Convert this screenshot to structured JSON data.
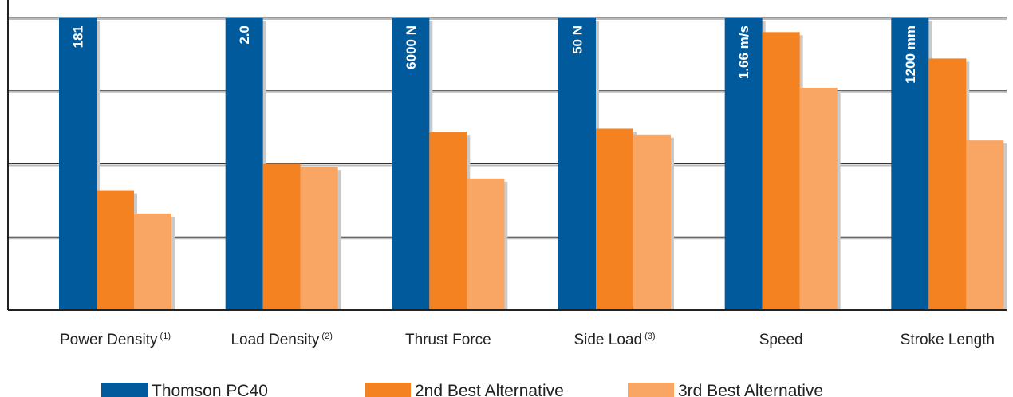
{
  "chart_data": {
    "type": "bar",
    "categories": [
      "Power Density",
      "Load Density",
      "Thrust Force",
      "Side Load",
      "Speed",
      "Stroke Length"
    ],
    "category_footnotes": [
      "(1)",
      "(2)",
      "",
      "(3)",
      "",
      ""
    ],
    "series": [
      {
        "name": "Thomson PC40",
        "color": "#005a9c",
        "values": [
          100,
          100,
          100,
          100,
          100,
          100
        ],
        "labels": [
          "181",
          "2.0",
          "6000 N",
          "50 N",
          "1.66 m/s",
          "1200 mm"
        ]
      },
      {
        "name": "2nd Best Alternative",
        "color": "#f58220",
        "values": [
          41,
          50,
          61,
          62,
          95,
          86
        ]
      },
      {
        "name": "3rd Best Alternative",
        "color": "#f9a563",
        "values": [
          33,
          49,
          45,
          60,
          76,
          58
        ]
      }
    ],
    "ylim": [
      0,
      100
    ],
    "gridlines": [
      25,
      50,
      75,
      100
    ],
    "legend_position": "bottom"
  }
}
